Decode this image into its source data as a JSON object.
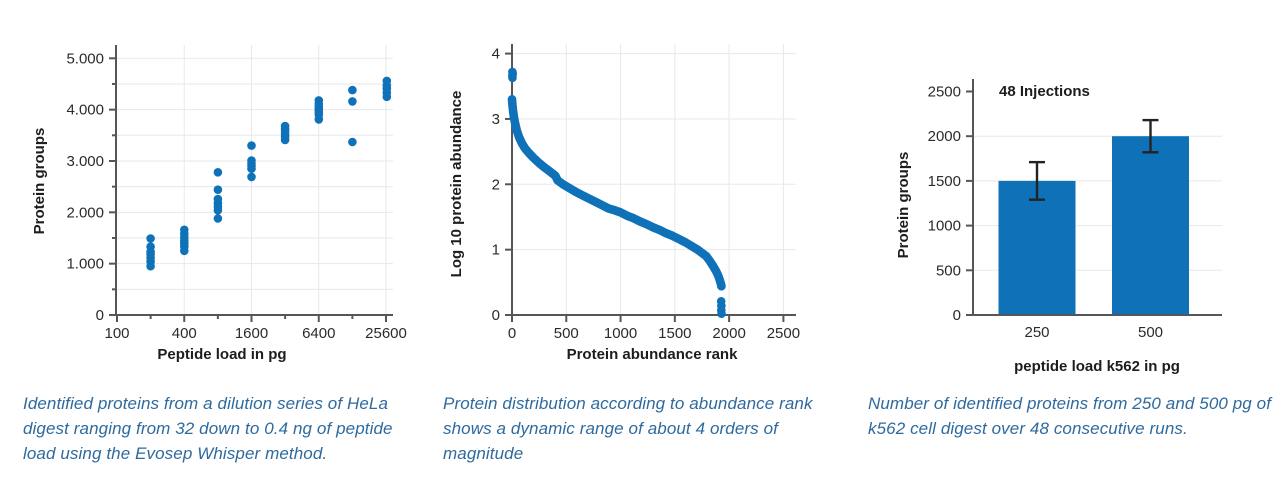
{
  "colors": {
    "marker_blue": "#0f72b9",
    "bar_blue": "#0f72b9",
    "caption_blue": "#2e6a9e",
    "axis": "#55565a",
    "grid": "#e6e8ea",
    "tick_label": "#2b2b2b",
    "title_text": "#1d1d1b",
    "error_bar": "#232323"
  },
  "chart_data": [
    {
      "type": "scatter",
      "xlabel": "Peptide load in pg",
      "ylabel": "Protein groups",
      "x_scale": "log4",
      "x_ticks": [
        100,
        400,
        1600,
        6400,
        25600
      ],
      "x_tick_labels": [
        "100",
        "400",
        "1600",
        "6400",
        "25600"
      ],
      "x_minor_ticks": [
        200,
        800,
        3200,
        12800
      ],
      "y_ticks": [
        [
          0,
          "0"
        ],
        [
          1000,
          "1.000"
        ],
        [
          2000,
          "2.000"
        ],
        [
          3000,
          "3.000"
        ],
        [
          4000,
          "4.000"
        ],
        [
          5000,
          "5.000"
        ]
      ],
      "y_minor_step": 500,
      "ylim": [
        0,
        5250
      ],
      "xlim": [
        100,
        28500
      ],
      "grid": "y-every-500, x-at-major",
      "clusters": [
        {
          "x": 200,
          "y": [
            1490,
            1330,
            1230,
            1180,
            1110,
            1040,
            950
          ]
        },
        {
          "x": 400,
          "y": [
            1660,
            1580,
            1510,
            1450,
            1390,
            1330,
            1250
          ]
        },
        {
          "x": 800,
          "y": [
            2780,
            2440,
            2260,
            2180,
            2110,
            2040,
            1880
          ]
        },
        {
          "x": 1600,
          "y": [
            3300,
            3010,
            2950,
            2900,
            2850,
            2690
          ]
        },
        {
          "x": 3200,
          "y": [
            3680,
            3620,
            3570,
            3520,
            3470,
            3410
          ]
        },
        {
          "x": 6400,
          "y": [
            4180,
            4110,
            4050,
            4000,
            3950,
            3900,
            3810
          ]
        },
        {
          "x": 12800,
          "y": [
            4380,
            4160,
            3370
          ]
        },
        {
          "x": 26000,
          "y": [
            4560,
            4470,
            4410,
            4330,
            4250
          ]
        }
      ],
      "caption": "Identified proteins from a dilution series of HeLa digest ranging from 32 down to 0.4 ng of peptide load using the Evosep Whisper method."
    },
    {
      "type": "scatter",
      "xlabel": "Protein abundance rank",
      "ylabel": "Log 10 protein abundance",
      "x_ticks": [
        0,
        500,
        1000,
        1500,
        2000,
        2500
      ],
      "y_ticks": [
        [
          0,
          "0"
        ],
        [
          1,
          "1"
        ],
        [
          2,
          "2"
        ],
        [
          3,
          "3"
        ],
        [
          4,
          "4"
        ]
      ],
      "ylim": [
        0,
        4.15
      ],
      "xlim": [
        0,
        2600
      ],
      "grid": "x-and-y-at-major",
      "curve_anchors": [
        [
          0,
          3.3
        ],
        [
          4,
          3.22
        ],
        [
          10,
          3.12
        ],
        [
          18,
          3.02
        ],
        [
          30,
          2.92
        ],
        [
          45,
          2.82
        ],
        [
          65,
          2.72
        ],
        [
          90,
          2.63
        ],
        [
          120,
          2.55
        ],
        [
          155,
          2.48
        ],
        [
          195,
          2.41
        ],
        [
          240,
          2.34
        ],
        [
          290,
          2.27
        ],
        [
          345,
          2.2
        ],
        [
          400,
          2.13
        ],
        [
          420,
          2.06
        ],
        [
          470,
          2.0
        ],
        [
          530,
          1.94
        ],
        [
          590,
          1.88
        ],
        [
          650,
          1.83
        ],
        [
          710,
          1.78
        ],
        [
          770,
          1.73
        ],
        [
          830,
          1.68
        ],
        [
          890,
          1.63
        ],
        [
          950,
          1.6
        ],
        [
          1000,
          1.57
        ],
        [
          1060,
          1.52
        ],
        [
          1120,
          1.48
        ],
        [
          1180,
          1.43
        ],
        [
          1240,
          1.39
        ],
        [
          1300,
          1.34
        ],
        [
          1360,
          1.3
        ],
        [
          1420,
          1.25
        ],
        [
          1480,
          1.21
        ],
        [
          1540,
          1.16
        ],
        [
          1600,
          1.11
        ],
        [
          1660,
          1.05
        ],
        [
          1710,
          1.0
        ],
        [
          1790,
          0.9
        ],
        [
          1825,
          0.82
        ],
        [
          1855,
          0.74
        ],
        [
          1880,
          0.67
        ],
        [
          1900,
          0.6
        ],
        [
          1915,
          0.53
        ],
        [
          1925,
          0.47
        ],
        [
          1929,
          0.44
        ]
      ],
      "outliers_top": [
        [
          4,
          3.72
        ],
        [
          6,
          3.69
        ],
        [
          4,
          3.66
        ],
        [
          5,
          3.63
        ]
      ],
      "outliers_bottom": [
        [
          1929,
          0.44
        ],
        [
          1927,
          0.21
        ],
        [
          1929,
          0.14
        ],
        [
          1928,
          0.07
        ],
        [
          1930,
          0.02
        ]
      ],
      "caption": "Protein distribution according to abundance rank shows a dynamic range of about 4 orders of magnitude"
    },
    {
      "type": "bar",
      "annotation": "48 Injections",
      "xlabel": "peptide load k562 in pg",
      "ylabel": "Protein groups",
      "categories": [
        "250",
        "500"
      ],
      "values": [
        1500,
        2000
      ],
      "errors": [
        210,
        180
      ],
      "y_ticks": [
        [
          0,
          "0"
        ],
        [
          500,
          "500"
        ],
        [
          1000,
          "1000"
        ],
        [
          1500,
          "1500"
        ],
        [
          2000,
          "2000"
        ],
        [
          2500,
          "2500"
        ]
      ],
      "ylim": [
        0,
        2640
      ],
      "grid": "y-at-major",
      "caption": "Number of identified proteins from 250 and 500 pg of k562 cell digest over 48 consecutive runs."
    }
  ]
}
